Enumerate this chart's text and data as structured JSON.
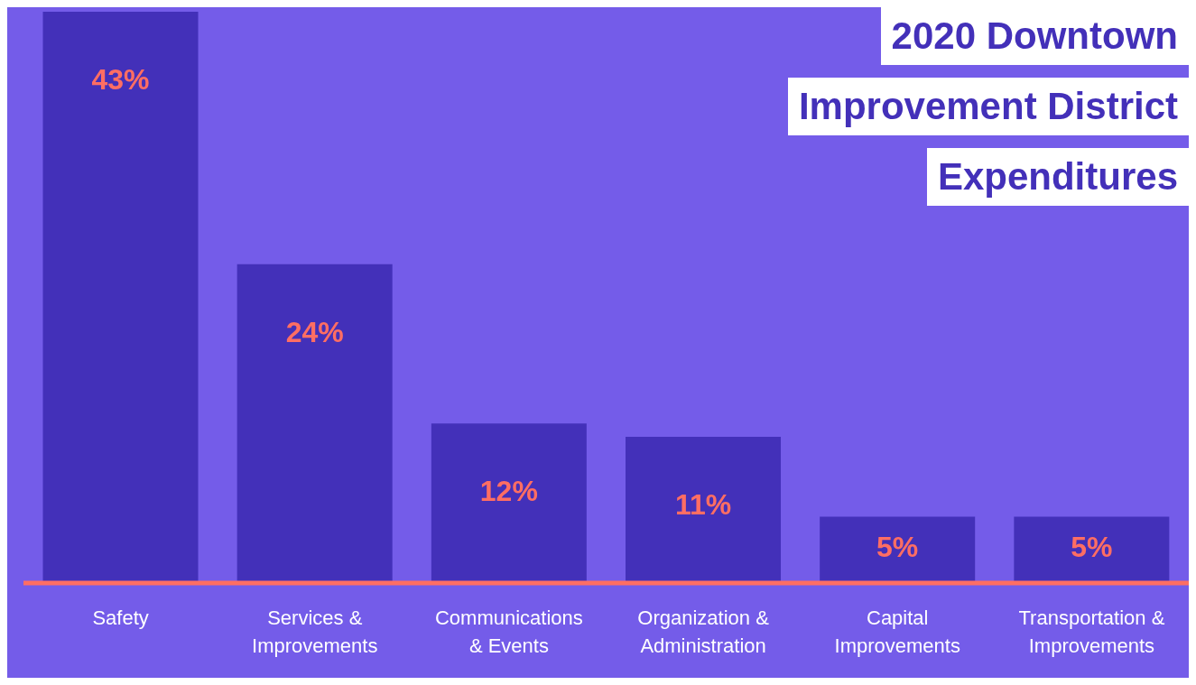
{
  "chart_data": {
    "type": "bar",
    "title": "2020 Downtown\nImprovement District\nExpenditures",
    "categories": [
      "Safety",
      "Services &\nImprovements",
      "Communications\n& Events",
      "Organization &\nAdministration",
      "Capital\nImprovements",
      "Transportation &\nImprovements"
    ],
    "values": [
      43,
      24,
      12,
      11,
      5,
      5
    ],
    "value_labels": [
      "43%",
      "24%",
      "12%",
      "11%",
      "5%",
      "5%"
    ],
    "color": "#4330b9",
    "grid": false,
    "legend": false
  }
}
